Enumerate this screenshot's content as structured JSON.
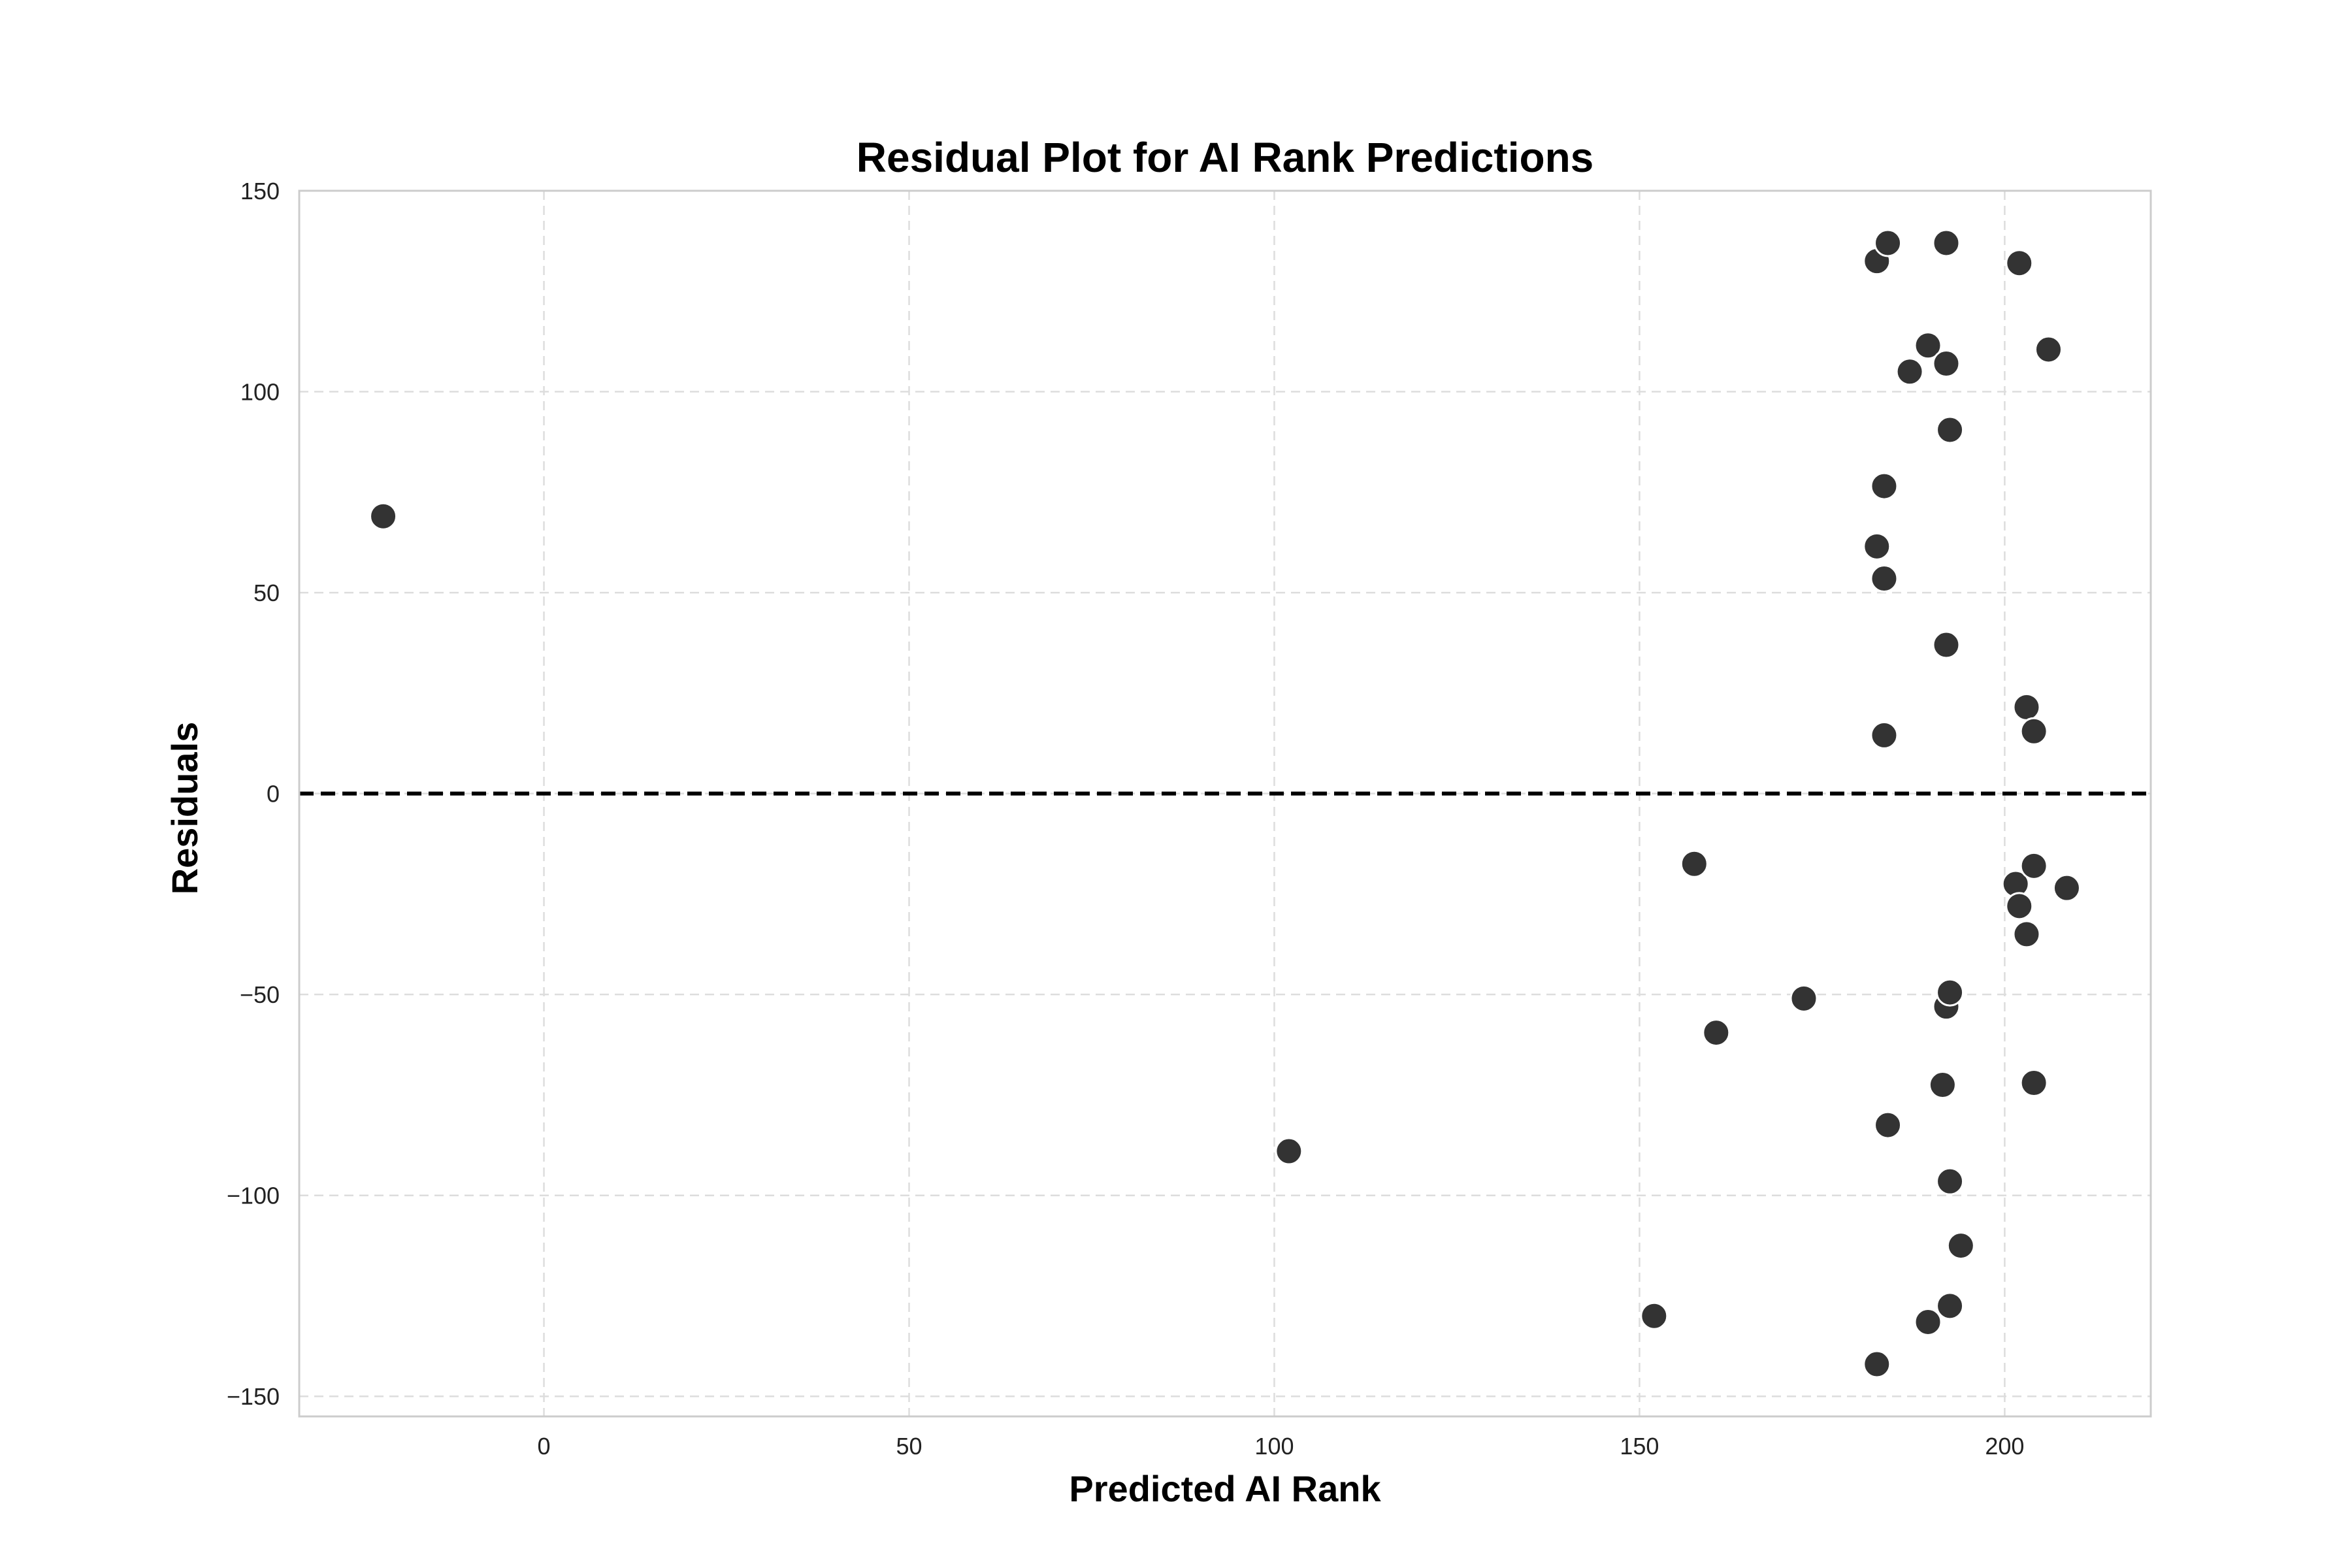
{
  "chart_data": {
    "type": "scatter",
    "title": "Residual Plot for AI Rank Predictions",
    "xlabel": "Predicted AI Rank",
    "ylabel": "Residuals",
    "xlim": [
      -33.5,
      220
    ],
    "ylim": [
      -155,
      150
    ],
    "xticks": [
      0,
      50,
      100,
      150,
      200
    ],
    "yticks": [
      -150,
      -100,
      -50,
      0,
      50,
      100,
      150
    ],
    "xtick_labels": [
      "0",
      "50",
      "100",
      "150",
      "200"
    ],
    "ytick_labels": [
      "−150",
      "−100",
      "−50",
      "0",
      "50",
      "100",
      "150"
    ],
    "grid": true,
    "reference_line": {
      "y": 0,
      "style": "dashed",
      "color": "#000000"
    },
    "point_color": "#333333",
    "points": [
      {
        "x": -22,
        "y": 69
      },
      {
        "x": 102,
        "y": -89
      },
      {
        "x": 152,
        "y": -130
      },
      {
        "x": 157.5,
        "y": -17.5
      },
      {
        "x": 160.5,
        "y": -59.5
      },
      {
        "x": 172.5,
        "y": -51
      },
      {
        "x": 182.5,
        "y": 132.5
      },
      {
        "x": 184,
        "y": 137
      },
      {
        "x": 182.5,
        "y": 61.5
      },
      {
        "x": 183.5,
        "y": 76.5
      },
      {
        "x": 183.5,
        "y": 53.5
      },
      {
        "x": 183.5,
        "y": 14.5
      },
      {
        "x": 184,
        "y": -82.5
      },
      {
        "x": 182.5,
        "y": -142
      },
      {
        "x": 187,
        "y": 105
      },
      {
        "x": 189.5,
        "y": 111.5
      },
      {
        "x": 189.5,
        "y": -131.5
      },
      {
        "x": 191.5,
        "y": -72.5
      },
      {
        "x": 192,
        "y": 137
      },
      {
        "x": 192,
        "y": 107
      },
      {
        "x": 192.5,
        "y": 90.5
      },
      {
        "x": 192,
        "y": 37
      },
      {
        "x": 192,
        "y": -53
      },
      {
        "x": 192.5,
        "y": -49.5
      },
      {
        "x": 192.5,
        "y": -96.5
      },
      {
        "x": 192.5,
        "y": -127.5
      },
      {
        "x": 194,
        "y": -112.5
      },
      {
        "x": 201.5,
        "y": -22.5
      },
      {
        "x": 202,
        "y": 132
      },
      {
        "x": 202,
        "y": -28
      },
      {
        "x": 203,
        "y": 21.5
      },
      {
        "x": 203,
        "y": -35
      },
      {
        "x": 204,
        "y": 15.5
      },
      {
        "x": 204,
        "y": -18
      },
      {
        "x": 204,
        "y": -72
      },
      {
        "x": 206,
        "y": 110.5
      },
      {
        "x": 208.5,
        "y": -23.5
      }
    ]
  }
}
